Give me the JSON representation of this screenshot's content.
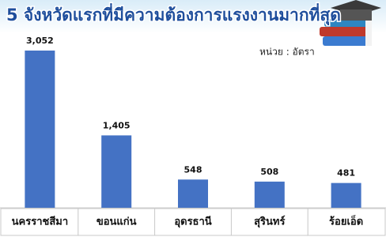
{
  "chart_data": {
    "type": "bar",
    "title": "5 จังหวัดแรกที่มีความต้องการแรงงานมากที่สุด",
    "annotation": "หน่วย : อัตรา",
    "categories": [
      "นครราชสีมา",
      "ขอนแก่น",
      "อุดรธานี",
      "สุรินทร์",
      "ร้อยเอ็ด"
    ],
    "values": [
      3052,
      1405,
      548,
      508,
      481
    ],
    "value_labels": [
      "3,052",
      "1,405",
      "548",
      "508",
      "481"
    ],
    "color": "#4472c4"
  }
}
